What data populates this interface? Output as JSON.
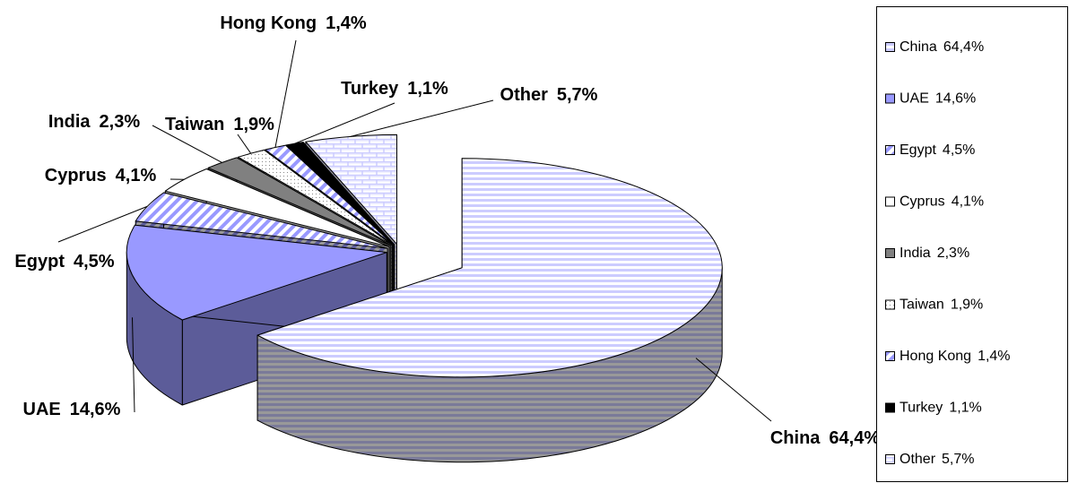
{
  "chart_data": {
    "type": "pie3d",
    "categories": [
      "China",
      "UAE",
      "Egypt",
      "Cyprus",
      "India",
      "Taiwan",
      "Hong Kong",
      "Turkey",
      "Other"
    ],
    "values": [
      64.4,
      14.6,
      4.5,
      4.1,
      2.3,
      1.9,
      1.4,
      1.1,
      5.7
    ],
    "value_labels": [
      "64,4%",
      "14,6%",
      "4,5%",
      "4,1%",
      "2,3%",
      "1,9%",
      "1,4%",
      "1,1%",
      "5,7%"
    ],
    "colors": [
      "#ccccff",
      "#9999ff",
      "#9999ff",
      "#ffffff",
      "#808080",
      "#ffffff",
      "#9999ff",
      "#000000",
      "#ccccff"
    ],
    "hatch": [
      "horizontal",
      "solid",
      "diagonal",
      "solid",
      "solid",
      "dots",
      "diagonal",
      "solid",
      "brick"
    ],
    "legend": "right"
  }
}
